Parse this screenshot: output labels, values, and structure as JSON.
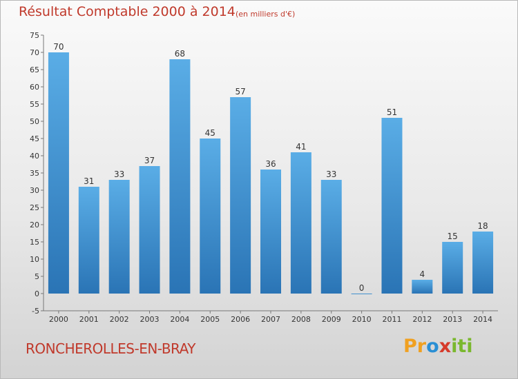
{
  "title": "Résultat Comptable 2000 à 2014",
  "subtitle": "(en milliers d'€)",
  "location": "RONCHEROLLES-EN-BRAY",
  "logo": {
    "text": "Proxiti",
    "letters": [
      "P",
      "r",
      "o",
      "x",
      "i",
      "t",
      "i"
    ],
    "colors": [
      "#f0a020",
      "#f0a020",
      "#2a8fd4",
      "#d63a2a",
      "#7ab82e",
      "#7ab82e",
      "#7ab82e"
    ]
  },
  "colors": {
    "bar_top": "#5aade6",
    "bar_bottom": "#2a74b5",
    "title": "#c0392b",
    "axis": "#777777"
  },
  "chart_data": {
    "type": "bar",
    "title": "Résultat Comptable 2000 à 2014",
    "subtitle": "(en milliers d'€)",
    "xlabel": "",
    "ylabel": "",
    "categories": [
      "2000",
      "2001",
      "2002",
      "2003",
      "2004",
      "2005",
      "2006",
      "2007",
      "2008",
      "2009",
      "2010",
      "2011",
      "2012",
      "2013",
      "2014"
    ],
    "values": [
      70,
      31,
      33,
      37,
      68,
      45,
      57,
      36,
      41,
      33,
      0,
      51,
      4,
      15,
      18
    ],
    "ylim": [
      -5,
      75
    ],
    "yticks": [
      -5,
      0,
      5,
      10,
      15,
      20,
      25,
      30,
      35,
      40,
      45,
      50,
      55,
      60,
      65,
      70,
      75
    ],
    "grid": false
  }
}
